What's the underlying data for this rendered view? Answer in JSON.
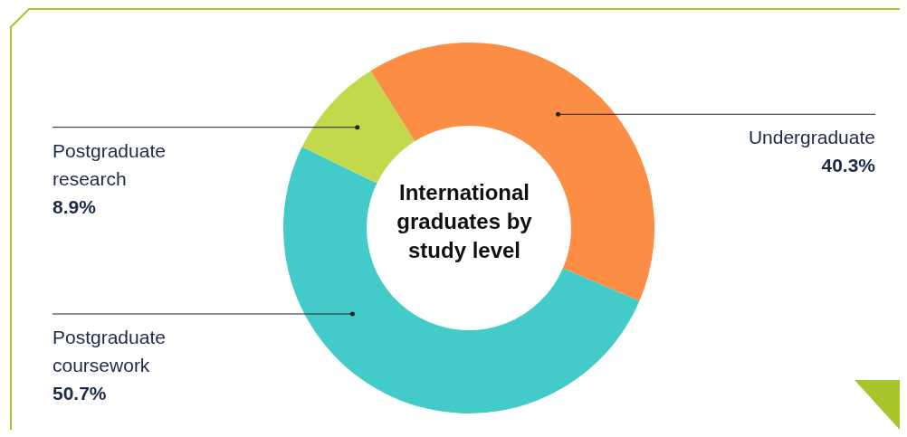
{
  "chart_data": {
    "type": "donut",
    "title": "International graduates by study level",
    "categories": [
      "Undergraduate",
      "Postgraduate coursework",
      "Postgraduate research"
    ],
    "values": [
      40.3,
      50.7,
      8.9
    ],
    "value_labels": [
      "40.3%",
      "50.7%",
      "8.9%"
    ],
    "colors": [
      "#fc8d45",
      "#43cbc9",
      "#c2d94b"
    ],
    "legend": false
  }
}
